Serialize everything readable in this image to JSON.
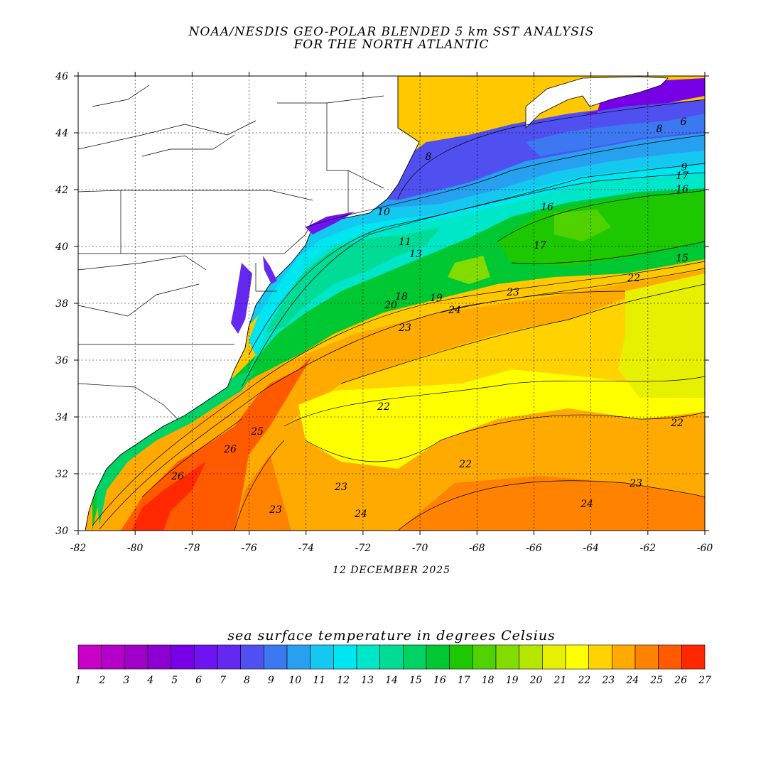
{
  "title": {
    "line1": "NOAA/NESDIS GEO-POLAR BLENDED 5 km SST ANALYSIS",
    "line2": "FOR THE NORTH ATLANTIC"
  },
  "date": "12 DECEMBER 2025",
  "scale_title": "sea surface temperature in degrees Celsius",
  "axes": {
    "lon_ticks": [
      "-82",
      "-80",
      "-78",
      "-76",
      "-74",
      "-72",
      "-70",
      "-68",
      "-66",
      "-64",
      "-62",
      "-60"
    ],
    "lat_ticks": [
      "46",
      "44",
      "42",
      "40",
      "38",
      "36",
      "34",
      "32",
      "30"
    ]
  },
  "colorbar": {
    "labels": [
      "1",
      "2",
      "3",
      "4",
      "5",
      "6",
      "7",
      "8",
      "9",
      "10",
      "11",
      "12",
      "13",
      "14",
      "15",
      "16",
      "17",
      "18",
      "19",
      "20",
      "21",
      "22",
      "23",
      "24",
      "25",
      "26",
      "27"
    ],
    "colors": [
      "#c800c8",
      "#b400c8",
      "#a000c8",
      "#8c00d2",
      "#7800e6",
      "#6e14f0",
      "#6428f0",
      "#5050f0",
      "#3c78f0",
      "#28a0f0",
      "#14c8f0",
      "#00e6f0",
      "#00e6c8",
      "#00dc96",
      "#00d264",
      "#00c832",
      "#1ec800",
      "#50d200",
      "#82dc00",
      "#b4e600",
      "#e6f000",
      "#ffff00",
      "#ffd200",
      "#ffaa00",
      "#ff8200",
      "#ff5a00",
      "#ff2800"
    ]
  },
  "contour_labels": [
    {
      "text": "6"
    },
    {
      "text": "8"
    },
    {
      "text": "8"
    },
    {
      "text": "9"
    },
    {
      "text": "10"
    },
    {
      "text": "11"
    },
    {
      "text": "13"
    },
    {
      "text": "16"
    },
    {
      "text": "16"
    },
    {
      "text": "17"
    },
    {
      "text": "18"
    },
    {
      "text": "19"
    },
    {
      "text": "20"
    },
    {
      "text": "22"
    },
    {
      "text": "22"
    },
    {
      "text": "22"
    },
    {
      "text": "22"
    },
    {
      "text": "23"
    },
    {
      "text": "23"
    },
    {
      "text": "23"
    },
    {
      "text": "23"
    },
    {
      "text": "24"
    },
    {
      "text": "24"
    },
    {
      "text": "24"
    },
    {
      "text": "25"
    },
    {
      "text": "26"
    },
    {
      "text": "26"
    },
    {
      "text": "23"
    },
    {
      "text": "15"
    },
    {
      "text": "17"
    }
  ]
}
